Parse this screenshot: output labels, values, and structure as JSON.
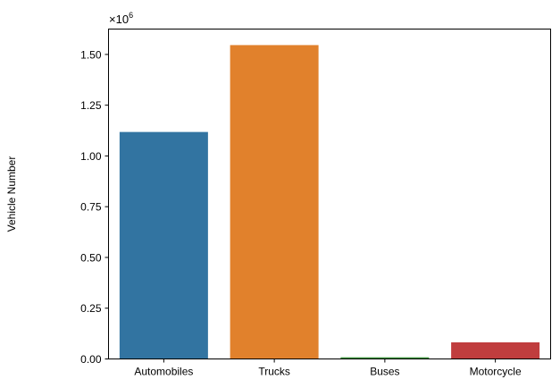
{
  "chart_data": {
    "type": "bar",
    "categories": [
      "Automobiles",
      "Trucks",
      "Buses",
      "Motorcycle"
    ],
    "values": [
      1118000,
      1546000,
      8000,
      82000
    ],
    "colors": [
      "#3274a1",
      "#e1812c",
      "#3a923a",
      "#c03d3e"
    ],
    "ylabel": "Vehicle Number",
    "xlabel": "",
    "ylim": [
      0,
      1625000
    ],
    "yticks": [
      0,
      250000,
      500000,
      750000,
      1000000,
      1250000,
      1500000
    ],
    "ytick_labels": [
      "0.00",
      "0.25",
      "0.50",
      "0.75",
      "1.00",
      "1.25",
      "1.50"
    ],
    "offset_base": "×10",
    "offset_exp": "6",
    "grid": false,
    "legend": "none"
  }
}
